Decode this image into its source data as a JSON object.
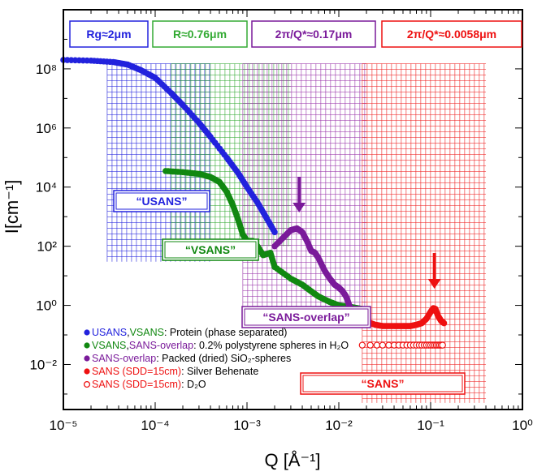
{
  "chart_data": {
    "type": "scatter",
    "xscale": "log",
    "yscale": "log",
    "xlim": [
      1e-05,
      1
    ],
    "ylim": [
      0.0003,
      10000000000.0
    ],
    "xlabel": "Q [Å⁻¹]",
    "ylabel": "I[cm⁻¹]",
    "xticks": [
      {
        "value": 1e-05,
        "label": "10⁻⁵"
      },
      {
        "value": 0.0001,
        "label": "10⁻⁴"
      },
      {
        "value": 0.001,
        "label": "10⁻³"
      },
      {
        "value": 0.01,
        "label": "10⁻²"
      },
      {
        "value": 0.1,
        "label": "10⁻¹"
      },
      {
        "value": 1,
        "label": "10⁰"
      }
    ],
    "yticks": [
      {
        "value": 0.01,
        "label": "10⁻²"
      },
      {
        "value": 1,
        "label": "10⁰"
      },
      {
        "value": 100,
        "label": "10²"
      },
      {
        "value": 10000,
        "label": "10⁴"
      },
      {
        "value": 1000000,
        "label": "10⁶"
      },
      {
        "value": 100000000,
        "label": "10⁸"
      }
    ],
    "series": [
      {
        "name": "USANS (protein)",
        "color": "#2222dd",
        "marker": "filled",
        "points": [
          [
            1e-05,
            200000000.0
          ],
          [
            2e-05,
            190000000.0
          ],
          [
            3.5e-05,
            170000000.0
          ],
          [
            5e-05,
            140000000.0
          ],
          [
            7e-05,
            90000000.0
          ],
          [
            0.0001,
            50000000.0
          ],
          [
            0.00015,
            15000000.0
          ],
          [
            0.0002,
            6000000.0
          ],
          [
            0.0003,
            1500000.0
          ],
          [
            0.0004,
            500000.0
          ],
          [
            0.0006,
            100000.0
          ],
          [
            0.0008,
            30000.0
          ],
          [
            0.001,
            10000.0
          ],
          [
            0.0013,
            3000
          ],
          [
            0.0016,
            1000
          ],
          [
            0.002,
            300
          ]
        ]
      },
      {
        "name": "VSANS (polystyrene)",
        "color": "#118811",
        "marker": "filled",
        "points": [
          [
            0.00013,
            35000
          ],
          [
            0.0002,
            32000
          ],
          [
            0.0003,
            28000
          ],
          [
            0.0004,
            22000
          ],
          [
            0.0005,
            15000
          ],
          [
            0.0006,
            7000
          ],
          [
            0.0007,
            2500
          ],
          [
            0.0008,
            800
          ],
          [
            0.0009,
            250
          ],
          [
            0.001,
            150
          ],
          [
            0.00115,
            150
          ],
          [
            0.0013,
            100
          ],
          [
            0.0015,
            50
          ],
          [
            0.0018,
            60
          ],
          [
            0.002,
            20
          ]
        ]
      },
      {
        "name": "SANS-overlap (polystyrene)",
        "color": "#118811",
        "marker": "filled",
        "points": [
          [
            0.002,
            20
          ],
          [
            0.003,
            8
          ],
          [
            0.004,
            5
          ],
          [
            0.005,
            3
          ],
          [
            0.006,
            2
          ],
          [
            0.008,
            1.3
          ],
          [
            0.01,
            1
          ],
          [
            0.013,
            0.9
          ],
          [
            0.016,
            0.8
          ],
          [
            0.018,
            0.75
          ]
        ]
      },
      {
        "name": "SANS-overlap (SiO2 spheres)",
        "color": "#7a1a9a",
        "marker": "filled",
        "points": [
          [
            0.002,
            100
          ],
          [
            0.0025,
            200
          ],
          [
            0.003,
            350
          ],
          [
            0.0035,
            400
          ],
          [
            0.004,
            300
          ],
          [
            0.0045,
            150
          ],
          [
            0.005,
            70
          ],
          [
            0.0055,
            60
          ],
          [
            0.006,
            40
          ],
          [
            0.007,
            15
          ],
          [
            0.008,
            8
          ],
          [
            0.009,
            5
          ],
          [
            0.01,
            4
          ],
          [
            0.011,
            3
          ],
          [
            0.012,
            2
          ],
          [
            0.013,
            1
          ],
          [
            0.014,
            0.6
          ],
          [
            0.016,
            0.4
          ],
          [
            0.018,
            0.35
          ],
          [
            0.02,
            0.3
          ]
        ]
      },
      {
        "name": "SANS Silver Behenate",
        "color": "#ee1111",
        "marker": "filled",
        "points": [
          [
            0.018,
            0.35
          ],
          [
            0.02,
            0.28
          ],
          [
            0.025,
            0.22
          ],
          [
            0.03,
            0.2
          ],
          [
            0.04,
            0.2
          ],
          [
            0.05,
            0.2
          ],
          [
            0.06,
            0.2
          ],
          [
            0.07,
            0.22
          ],
          [
            0.08,
            0.25
          ],
          [
            0.09,
            0.35
          ],
          [
            0.1,
            0.6
          ],
          [
            0.107,
            0.8
          ],
          [
            0.113,
            0.75
          ],
          [
            0.12,
            0.45
          ],
          [
            0.13,
            0.3
          ],
          [
            0.14,
            0.25
          ]
        ]
      },
      {
        "name": "SANS D2O",
        "color": "#ee1111",
        "marker": "open",
        "points": [
          [
            0.018,
            0.045
          ],
          [
            0.022,
            0.045
          ],
          [
            0.026,
            0.045
          ],
          [
            0.03,
            0.045
          ],
          [
            0.035,
            0.045
          ],
          [
            0.04,
            0.045
          ],
          [
            0.045,
            0.045
          ],
          [
            0.05,
            0.045
          ],
          [
            0.055,
            0.045
          ],
          [
            0.06,
            0.045
          ],
          [
            0.065,
            0.045
          ],
          [
            0.07,
            0.045
          ],
          [
            0.075,
            0.045
          ],
          [
            0.08,
            0.045
          ],
          [
            0.085,
            0.045
          ],
          [
            0.09,
            0.045
          ],
          [
            0.095,
            0.045
          ],
          [
            0.1,
            0.045
          ],
          [
            0.105,
            0.045
          ],
          [
            0.11,
            0.045
          ],
          [
            0.115,
            0.045
          ],
          [
            0.12,
            0.045
          ],
          [
            0.125,
            0.045
          ],
          [
            0.13,
            0.045
          ],
          [
            0.135,
            0.045
          ]
        ]
      }
    ],
    "regions": [
      {
        "name": "usans",
        "color": "#2222dd",
        "qmin": 3e-05,
        "qmax": 0.0004,
        "ymin": 30,
        "ymax": 150000000.0
      },
      {
        "name": "vsans",
        "color": "#33aa33",
        "qmin": 0.00015,
        "qmax": 0.003,
        "ymin": 100,
        "ymax": 150000000.0
      },
      {
        "name": "overlap",
        "color": "#9933aa",
        "qmin": 0.0009,
        "qmax": 0.02,
        "ymin": 0.3,
        "ymax": 150000000.0
      },
      {
        "name": "sans",
        "color": "#ee2222",
        "qmin": 0.018,
        "qmax": 0.4,
        "ymin": 0.0005,
        "ymax": 150000000.0
      }
    ],
    "annotations": [
      {
        "key": "rg",
        "text": "Rg≈2μm",
        "color": "#2222dd"
      },
      {
        "key": "r",
        "text": "R≈0.76μm",
        "color": "#33aa33"
      },
      {
        "key": "q_purple",
        "text": "2π/Q*≈0.17μm",
        "color": "#7a1a9a"
      },
      {
        "key": "q_red",
        "text": "2π/Q*≈0.0058μm",
        "color": "#ee1111"
      },
      {
        "key": "usans",
        "text": "“USANS”",
        "color": "#2222dd"
      },
      {
        "key": "vsans",
        "text": "“VSANS”",
        "color": "#118811"
      },
      {
        "key": "overlap",
        "text": "“SANS-overlap”",
        "color": "#7a1a9a"
      },
      {
        "key": "sans",
        "text": "“SANS”",
        "color": "#ee1111"
      }
    ],
    "arrows": [
      {
        "color": "#7a1a9a",
        "q": 0.0037
      },
      {
        "color": "#ee1111",
        "q": 0.11
      }
    ],
    "legend": {
      "placement": "bottom-left",
      "entries": [
        {
          "marker": "filled",
          "parts": [
            {
              "text": "USANS",
              "color": "#2222dd"
            },
            {
              "text": ",",
              "color": "#000000"
            },
            {
              "text": "VSANS",
              "color": "#118811"
            },
            {
              "text": ": Protein (phase separated)",
              "color": "#000000"
            }
          ],
          "dot_color": "#2222dd"
        },
        {
          "marker": "filled",
          "parts": [
            {
              "text": "VSANS",
              "color": "#118811"
            },
            {
              "text": ",",
              "color": "#000000"
            },
            {
              "text": "SANS-overlap",
              "color": "#7a1a9a"
            },
            {
              "text": ": 0.2% polystyrene spheres in H₂O",
              "color": "#000000"
            }
          ],
          "dot_color": "#118811"
        },
        {
          "marker": "filled",
          "parts": [
            {
              "text": "SANS-overlap",
              "color": "#7a1a9a"
            },
            {
              "text": ": Packed (dried) SiO₂-spheres",
              "color": "#000000"
            }
          ],
          "dot_color": "#7a1a9a"
        },
        {
          "marker": "filled",
          "parts": [
            {
              "text": "SANS (SDD=15cm)",
              "color": "#ee1111"
            },
            {
              "text": ": Silver Behenate",
              "color": "#000000"
            }
          ],
          "dot_color": "#ee1111"
        },
        {
          "marker": "open",
          "parts": [
            {
              "text": "SANS (SDD=15cm)",
              "color": "#ee1111"
            },
            {
              "text": ": D₂O",
              "color": "#000000"
            }
          ],
          "dot_color": "#ee1111"
        }
      ]
    }
  }
}
